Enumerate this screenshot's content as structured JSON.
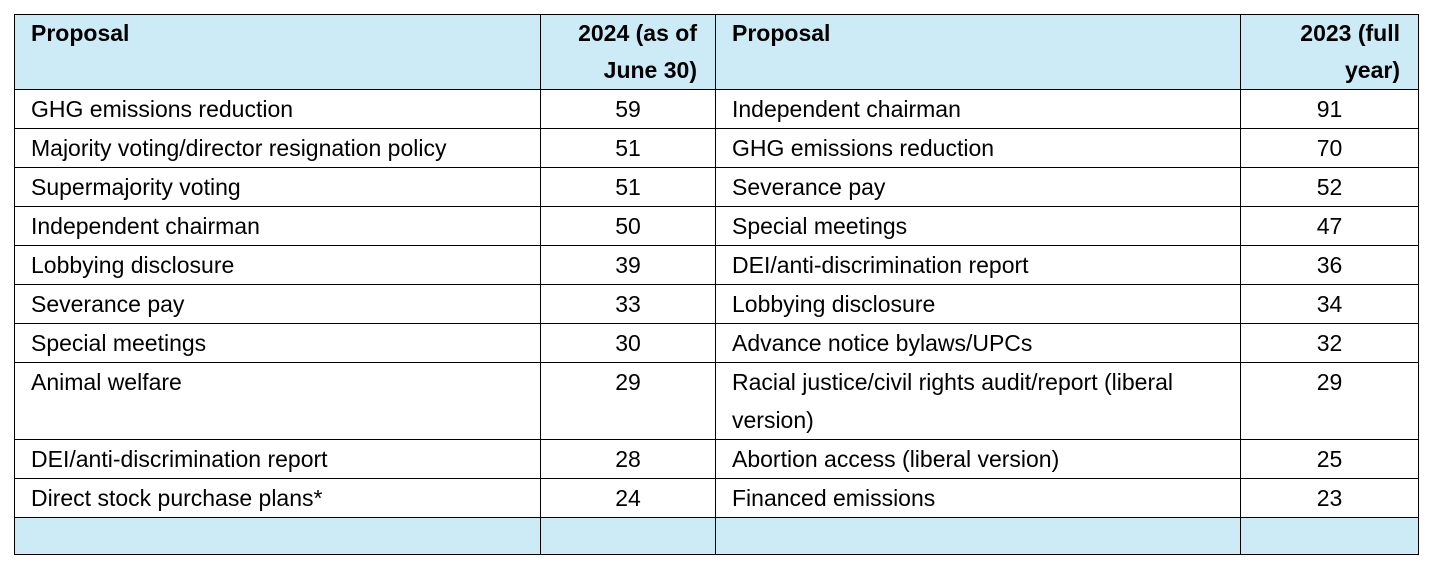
{
  "table": {
    "header": [
      "Proposal",
      "2024 (as of June 30)",
      "Proposal",
      "2023 (full year)"
    ],
    "rows": [
      [
        "GHG emissions reduction",
        59,
        "Independent chairman",
        91
      ],
      [
        "Majority voting/director resignation policy",
        51,
        "GHG emissions reduction",
        70
      ],
      [
        "Supermajority voting",
        51,
        "Severance pay",
        52
      ],
      [
        "Independent chairman",
        50,
        "Special meetings",
        47
      ],
      [
        "Lobbying disclosure",
        39,
        "DEI/anti-discrimination report",
        36
      ],
      [
        "Severance pay",
        33,
        "Lobbying disclosure",
        34
      ],
      [
        "Special meetings",
        30,
        "Advance notice bylaws/UPCs",
        32
      ],
      [
        "Animal welfare",
        29,
        "Racial justice/civil rights audit/report (liberal version)",
        29
      ],
      [
        "DEI/anti-discrimination report",
        28,
        "Abortion access (liberal version)",
        25
      ],
      [
        "Direct stock purchase plans*",
        24,
        "Financed emissions",
        23
      ]
    ]
  }
}
